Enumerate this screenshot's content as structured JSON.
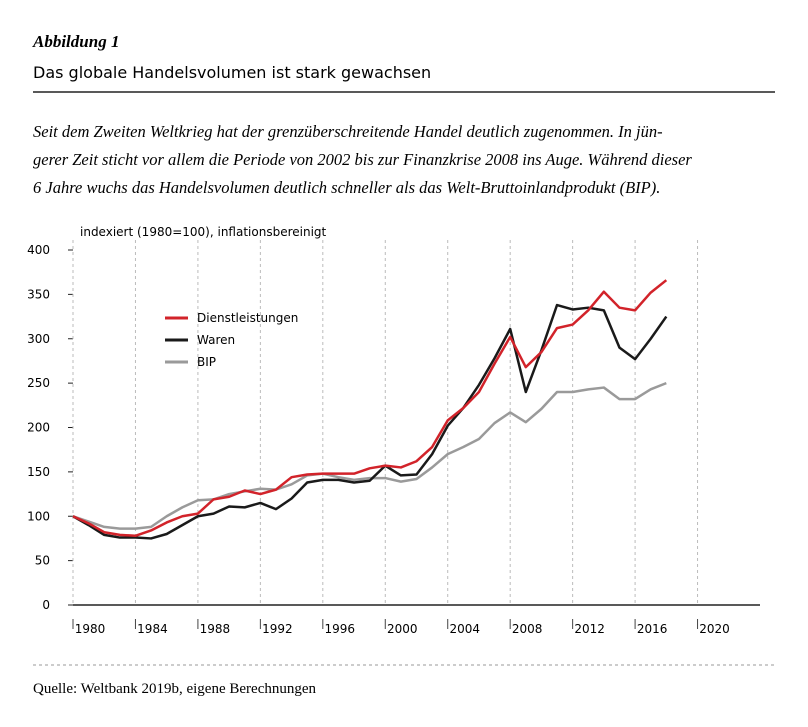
{
  "figure_label": "Abbildung 1",
  "heading": "Das globale Handelsvolumen ist stark gewachsen",
  "description": [
    "Seit dem Zweiten Weltkrieg hat der grenzüberschreitende Handel deutlich zugenommen. In jün-",
    "gerer Zeit sticht vor allem die Periode von 2002 bis zur Finanzkrise 2008 ins Auge. Während dieser",
    "6 Jahre wuchs das Handelsvolumen deutlich schneller als das Welt-Bruttoinlandprodukt (BIP)."
  ],
  "source": "Quelle: Weltbank 2019b, eigene Berechnungen",
  "chart_data": {
    "type": "line",
    "y_label": "indexiert (1980=100), inflationsbereinigt",
    "x": [
      1980,
      1981,
      1982,
      1983,
      1984,
      1985,
      1986,
      1987,
      1988,
      1989,
      1990,
      1991,
      1992,
      1993,
      1994,
      1995,
      1996,
      1997,
      1998,
      1999,
      2000,
      2001,
      2002,
      2003,
      2004,
      2005,
      2006,
      2007,
      2008,
      2009,
      2010,
      2011,
      2012,
      2013,
      2014,
      2015,
      2016,
      2017,
      2018
    ],
    "series": [
      {
        "name": "Dienstleistungen",
        "color": "#d2232a",
        "values": [
          100,
          92,
          82,
          79,
          78,
          84,
          93,
          100,
          103,
          119,
          122,
          129,
          125,
          130,
          144,
          147,
          148,
          148,
          148,
          154,
          157,
          155,
          162,
          178,
          208,
          222,
          240,
          272,
          302,
          268,
          285,
          312,
          316,
          332,
          353,
          335,
          332,
          352,
          366
        ]
      },
      {
        "name": "Waren",
        "color": "#1a1a1a",
        "values": [
          100,
          90,
          79,
          76,
          76,
          75,
          80,
          90,
          100,
          103,
          111,
          110,
          115,
          108,
          120,
          138,
          141,
          141,
          138,
          140,
          157,
          146,
          147,
          170,
          202,
          222,
          248,
          278,
          311,
          240,
          287,
          338,
          333,
          335,
          332,
          290,
          277,
          300,
          325
        ]
      },
      {
        "name": "BIP",
        "color": "#9a9a9a",
        "values": [
          100,
          94,
          88,
          86,
          86,
          88,
          100,
          110,
          118,
          119,
          125,
          128,
          131,
          130,
          136,
          146,
          148,
          144,
          141,
          143,
          143,
          139,
          142,
          155,
          170,
          178,
          187,
          205,
          217,
          206,
          221,
          240,
          240,
          243,
          245,
          232,
          232,
          243,
          250
        ]
      }
    ],
    "xlim": [
      1980,
      2024
    ],
    "xticks": [
      1980,
      1984,
      1988,
      1992,
      1996,
      2000,
      2004,
      2008,
      2012,
      2016,
      2020
    ],
    "ylim": [
      0,
      400
    ],
    "yticks": [
      0,
      50,
      100,
      150,
      200,
      250,
      300,
      350,
      400
    ],
    "grid": "x"
  }
}
